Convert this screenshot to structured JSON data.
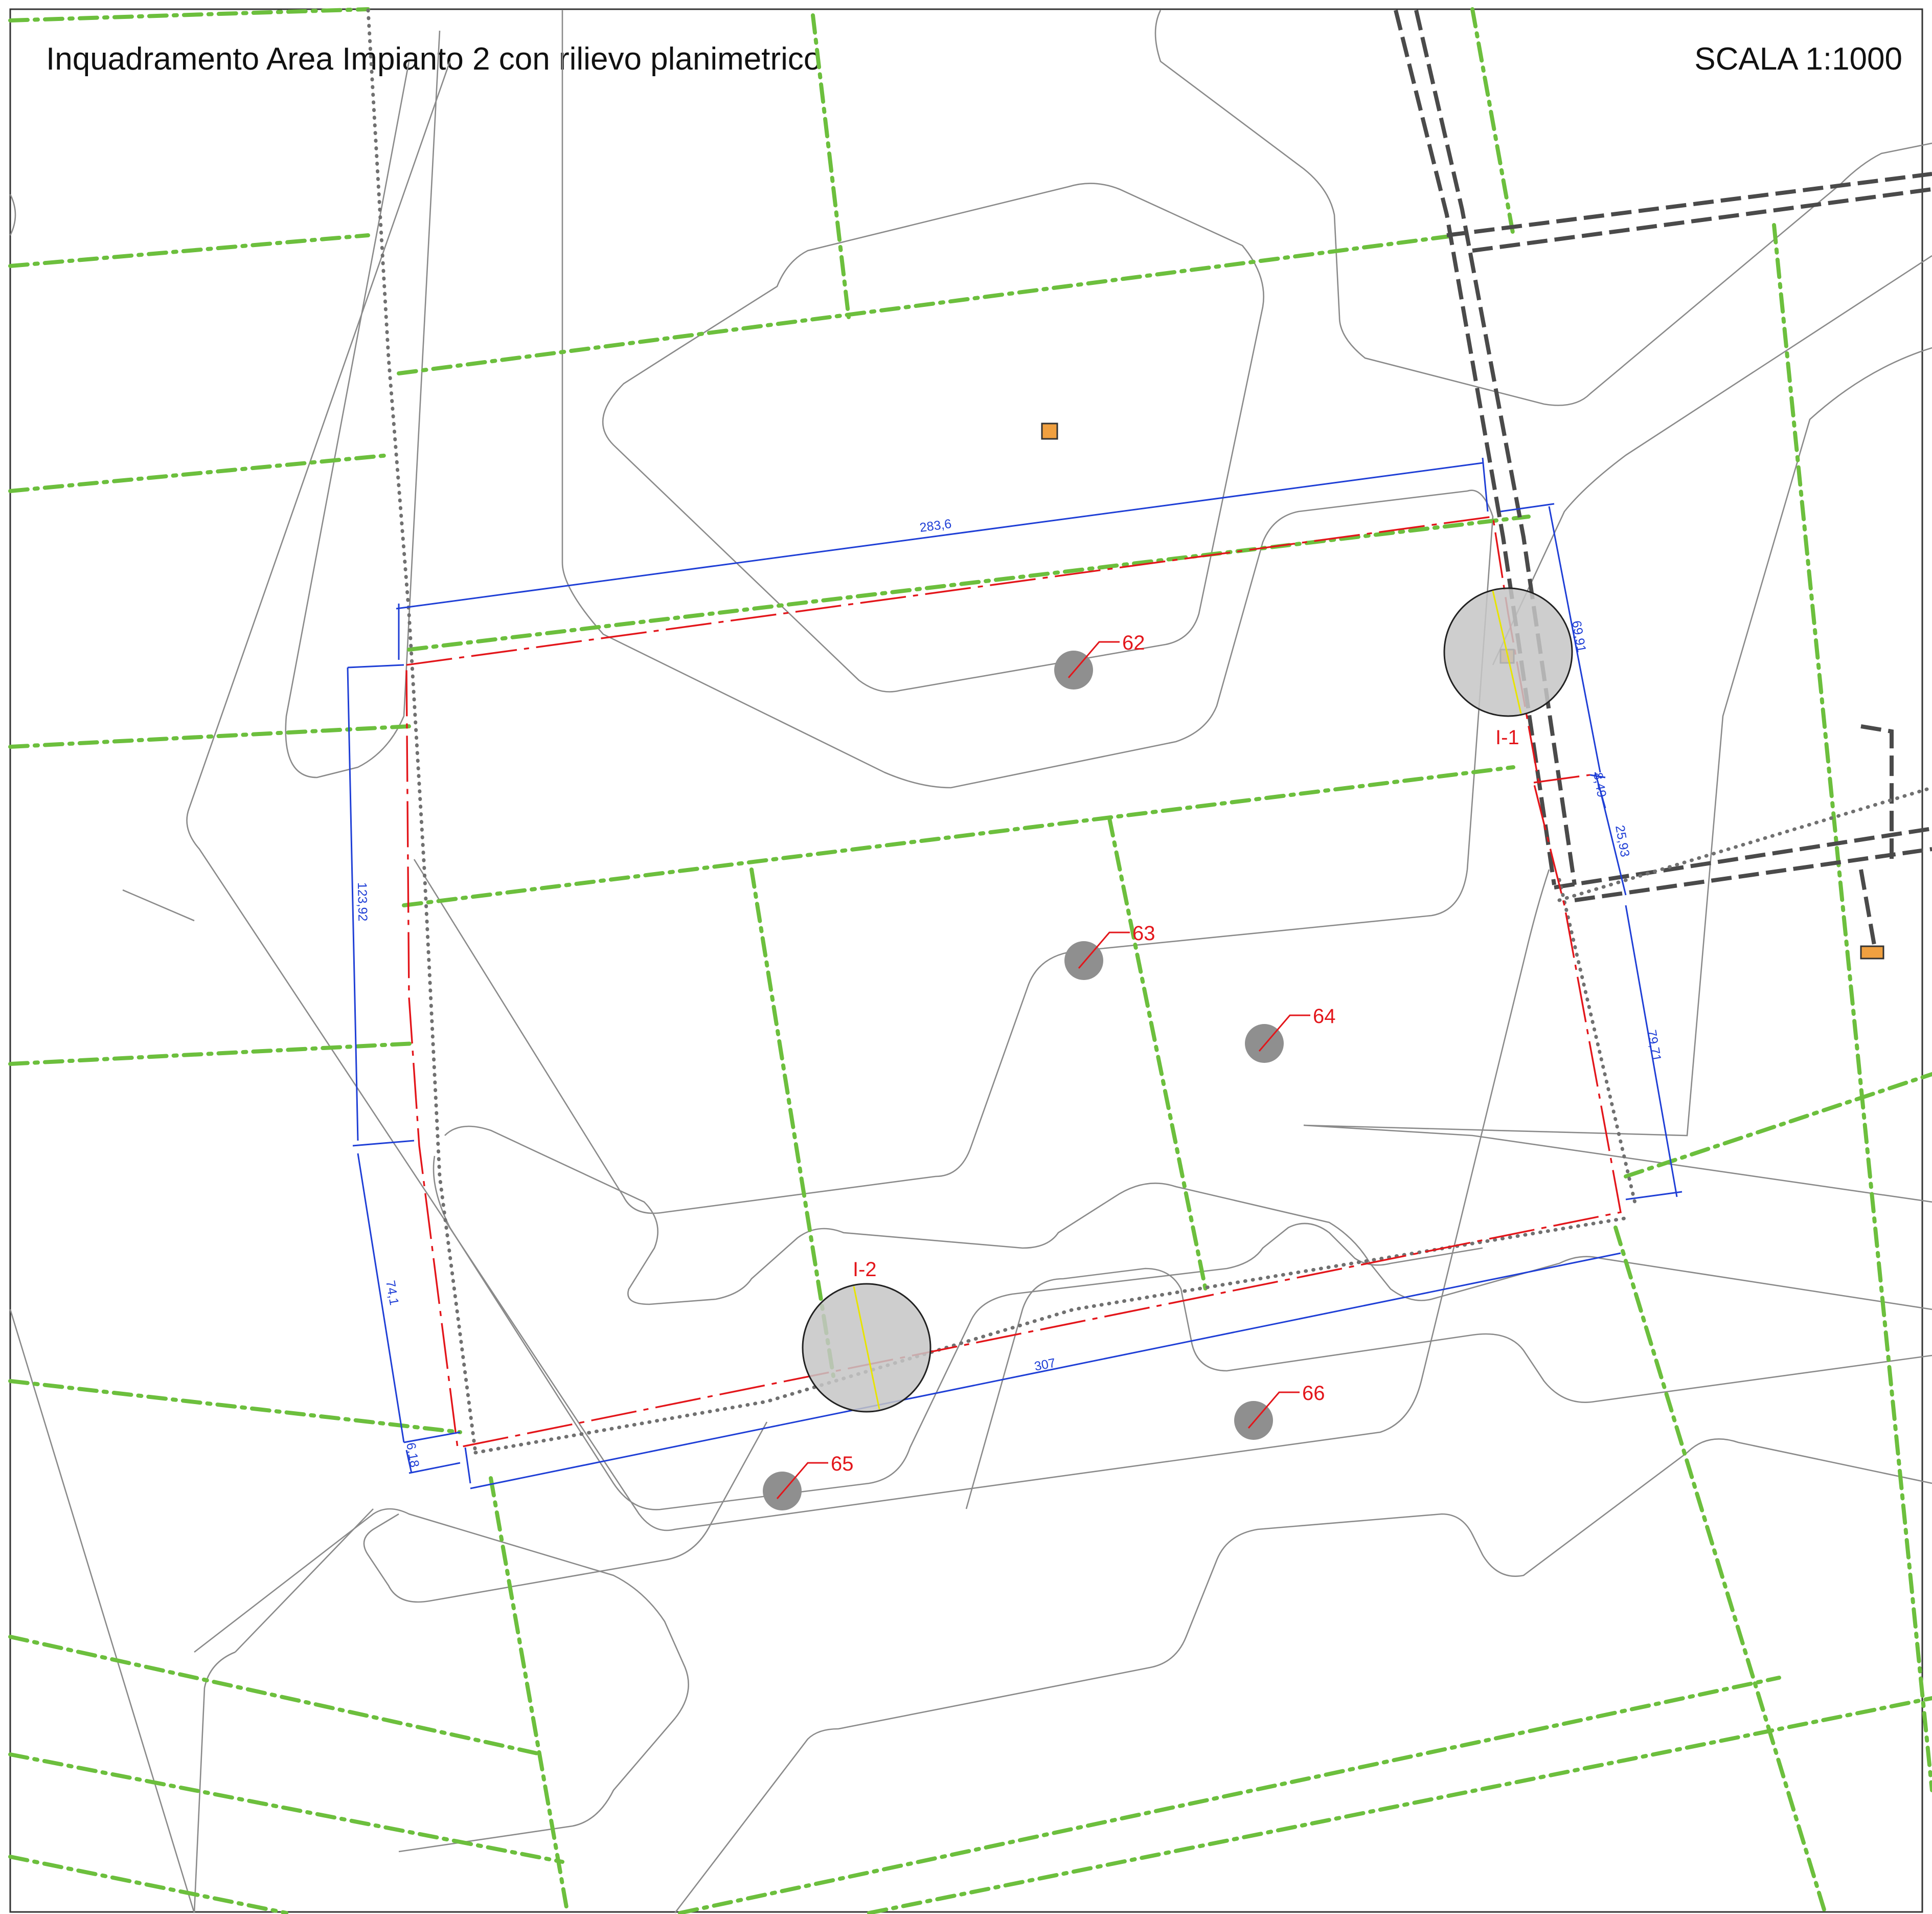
{
  "title": "Inquadramento Area Impianto 2 con rilievo planimetrico",
  "scale": "SCALA 1:1000",
  "dimensions": {
    "north": "283,6",
    "east_upper": "69,91",
    "east_small": "8,49",
    "east_mid": "25,93",
    "east_lower": "79,71",
    "south": "307",
    "west_upper": "123,92",
    "west_lower": "74,1",
    "west_small": "6,18"
  },
  "survey_points": [
    "62",
    "63",
    "64",
    "65",
    "66"
  ],
  "wells": [
    "I-1",
    "I-2"
  ],
  "colors": {
    "boundary": "#e3161b",
    "dimension": "#1f3fd6",
    "ditch": "#6cbf3d",
    "road": "#4a4a4a",
    "contour": "#8a8a8a"
  }
}
